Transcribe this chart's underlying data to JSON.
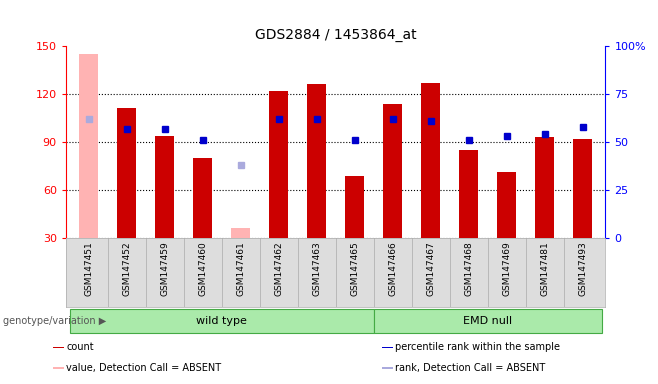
{
  "title": "GDS2884 / 1453864_at",
  "samples": [
    "GSM147451",
    "GSM147452",
    "GSM147459",
    "GSM147460",
    "GSM147461",
    "GSM147462",
    "GSM147463",
    "GSM147465",
    "GSM147466",
    "GSM147467",
    "GSM147468",
    "GSM147469",
    "GSM147481",
    "GSM147493"
  ],
  "count_values": [
    null,
    111,
    94,
    80,
    null,
    122,
    126,
    69,
    114,
    127,
    85,
    71,
    93,
    92
  ],
  "count_absent": [
    145,
    null,
    null,
    null,
    36,
    null,
    null,
    null,
    null,
    null,
    null,
    null,
    null,
    null
  ],
  "rank_values": [
    null,
    57,
    57,
    51,
    null,
    62,
    62,
    51,
    62,
    61,
    51,
    53,
    54,
    58
  ],
  "rank_absent": [
    62,
    null,
    null,
    null,
    38,
    null,
    null,
    null,
    null,
    null,
    null,
    null,
    null,
    null
  ],
  "ylim": [
    30,
    150
  ],
  "y2lim": [
    0,
    100
  ],
  "yticks": [
    30,
    60,
    90,
    120,
    150
  ],
  "y2ticks": [
    0,
    25,
    50,
    75,
    100
  ],
  "bar_color": "#cc0000",
  "bar_absent_color": "#ffb3b3",
  "dot_color": "#0000cc",
  "dot_absent_color": "#aaaadd",
  "wild_type_samples": [
    "GSM147451",
    "GSM147452",
    "GSM147459",
    "GSM147460",
    "GSM147461",
    "GSM147462",
    "GSM147463",
    "GSM147465"
  ],
  "emd_null_samples": [
    "GSM147466",
    "GSM147467",
    "GSM147468",
    "GSM147469",
    "GSM147481",
    "GSM147493"
  ],
  "group_label_wild": "wild type",
  "group_label_emd": "EMD null",
  "group_color": "#aaeaaa",
  "group_border_color": "#44aa44",
  "legend_items": [
    {
      "label": "count",
      "color": "#cc0000"
    },
    {
      "label": "percentile rank within the sample",
      "color": "#0000cc"
    },
    {
      "label": "value, Detection Call = ABSENT",
      "color": "#ffb3b3"
    },
    {
      "label": "rank, Detection Call = ABSENT",
      "color": "#aaaadd"
    }
  ],
  "genotype_label": "genotype/variation",
  "bar_width": 0.5,
  "sample_area_color": "#cccccc",
  "gray_bg_color": "#dddddd"
}
